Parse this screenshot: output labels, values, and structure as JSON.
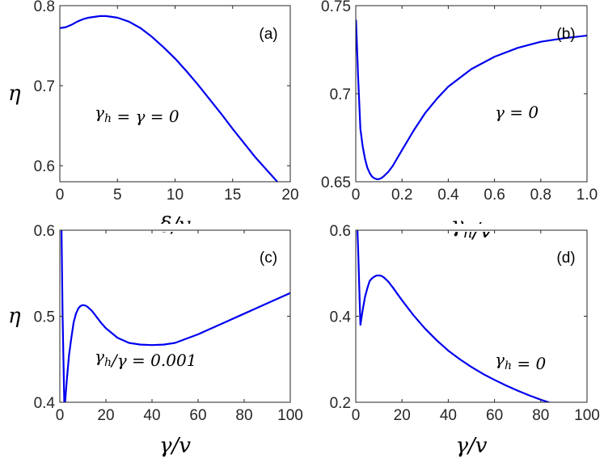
{
  "chart_data": [
    {
      "id": "a",
      "type": "line",
      "panel_label": "(a)",
      "xlabel": "δ/v",
      "ylabel": "η",
      "annotation": "γh = γ = 0",
      "xlim": [
        0,
        20
      ],
      "ylim": [
        0.58,
        0.8
      ],
      "xticks": [
        0,
        5,
        10,
        15,
        20
      ],
      "xtick_labels": [
        "0",
        "5",
        "10",
        "15",
        "20"
      ],
      "yticks": [
        0.6,
        0.7,
        0.8
      ],
      "ytick_labels": [
        "0.6",
        "0.7",
        "0.8"
      ],
      "series": [
        {
          "color": "#0000ee",
          "x": [
            0,
            0.5,
            1,
            1.5,
            2,
            2.5,
            3,
            3.5,
            4,
            4.5,
            5,
            6,
            7,
            8,
            9,
            10,
            11,
            12,
            13,
            14,
            15,
            16,
            17,
            18,
            19,
            20
          ],
          "y": [
            0.772,
            0.773,
            0.776,
            0.78,
            0.783,
            0.785,
            0.786,
            0.787,
            0.787,
            0.786,
            0.785,
            0.78,
            0.772,
            0.761,
            0.748,
            0.734,
            0.718,
            0.701,
            0.683,
            0.665,
            0.646,
            0.628,
            0.61,
            0.594,
            0.578,
            0.562
          ]
        }
      ]
    },
    {
      "id": "b",
      "type": "line",
      "panel_label": "(b)",
      "xlabel": "γh/v",
      "ylabel": "",
      "annotation": "γ = 0",
      "xlim": [
        0,
        1
      ],
      "ylim": [
        0.65,
        0.75
      ],
      "xticks": [
        0,
        0.2,
        0.4,
        0.6,
        0.8,
        1.0
      ],
      "xtick_labels": [
        "0",
        "0.2",
        "0.4",
        "0.6",
        "0.8",
        "1.0"
      ],
      "yticks": [
        0.65,
        0.7,
        0.75
      ],
      "ytick_labels": [
        "0.65",
        "0.7",
        "0.75"
      ],
      "series": [
        {
          "color": "#0000ee",
          "x": [
            0.001,
            0.01,
            0.02,
            0.03,
            0.04,
            0.05,
            0.06,
            0.07,
            0.08,
            0.09,
            0.1,
            0.11,
            0.12,
            0.14,
            0.16,
            0.18,
            0.2,
            0.25,
            0.3,
            0.35,
            0.4,
            0.45,
            0.5,
            0.6,
            0.7,
            0.8,
            0.9,
            1.0
          ],
          "y": [
            0.742,
            0.71,
            0.68,
            0.67,
            0.663,
            0.658,
            0.655,
            0.653,
            0.652,
            0.6515,
            0.6515,
            0.652,
            0.653,
            0.6555,
            0.659,
            0.6635,
            0.668,
            0.679,
            0.689,
            0.697,
            0.704,
            0.709,
            0.714,
            0.721,
            0.726,
            0.7295,
            0.7315,
            0.733
          ]
        }
      ]
    },
    {
      "id": "c",
      "type": "line",
      "panel_label": "(c)",
      "xlabel": "γ/v",
      "ylabel": "η",
      "annotation": "γh/γ = 0.001",
      "xlim": [
        0,
        100
      ],
      "ylim": [
        0.4,
        0.6
      ],
      "xticks": [
        0,
        20,
        40,
        60,
        80,
        100
      ],
      "xtick_labels": [
        "0",
        "20",
        "40",
        "60",
        "80",
        "100"
      ],
      "yticks": [
        0.4,
        0.5,
        0.6
      ],
      "ytick_labels": [
        "0.4",
        "0.5",
        "0.6"
      ],
      "series": [
        {
          "color": "#0000ee",
          "x": [
            0.5,
            1.2,
            2,
            3,
            4,
            5,
            6,
            7,
            8,
            9,
            10,
            11,
            12,
            14,
            16,
            18,
            20,
            25,
            30,
            35,
            40,
            45,
            50,
            60,
            70,
            80,
            90,
            100
          ],
          "y": [
            0.65,
            0.5,
            0.39,
            0.425,
            0.455,
            0.475,
            0.493,
            0.503,
            0.509,
            0.512,
            0.513,
            0.5125,
            0.511,
            0.506,
            0.499,
            0.492,
            0.486,
            0.475,
            0.469,
            0.467,
            0.4665,
            0.467,
            0.469,
            0.479,
            0.491,
            0.503,
            0.515,
            0.527
          ]
        }
      ]
    },
    {
      "id": "d",
      "type": "line",
      "panel_label": "(d)",
      "xlabel": "γ/v",
      "ylabel": "",
      "annotation": "γh = 0",
      "xlim": [
        0,
        100
      ],
      "ylim": [
        0.2,
        0.6
      ],
      "xticks": [
        0,
        20,
        40,
        60,
        80,
        100
      ],
      "xtick_labels": [
        "0",
        "20",
        "40",
        "60",
        "80",
        "100"
      ],
      "yticks": [
        0.2,
        0.4,
        0.6
      ],
      "ytick_labels": [
        "0.2",
        "0.4",
        "0.6"
      ],
      "series": [
        {
          "color": "#0000ee",
          "x": [
            0.5,
            1,
            2,
            3,
            4,
            5,
            6,
            7,
            8,
            9,
            10,
            11,
            12,
            14,
            16,
            18,
            20,
            25,
            30,
            35,
            40,
            45,
            50,
            55,
            60,
            65,
            70,
            75,
            80,
            85
          ],
          "y": [
            0.63,
            0.56,
            0.38,
            0.415,
            0.445,
            0.465,
            0.482,
            0.488,
            0.492,
            0.4945,
            0.495,
            0.494,
            0.491,
            0.481,
            0.467,
            0.452,
            0.437,
            0.402,
            0.371,
            0.344,
            0.32,
            0.3,
            0.282,
            0.266,
            0.252,
            0.239,
            0.227,
            0.216,
            0.206,
            0.197
          ]
        }
      ]
    }
  ]
}
